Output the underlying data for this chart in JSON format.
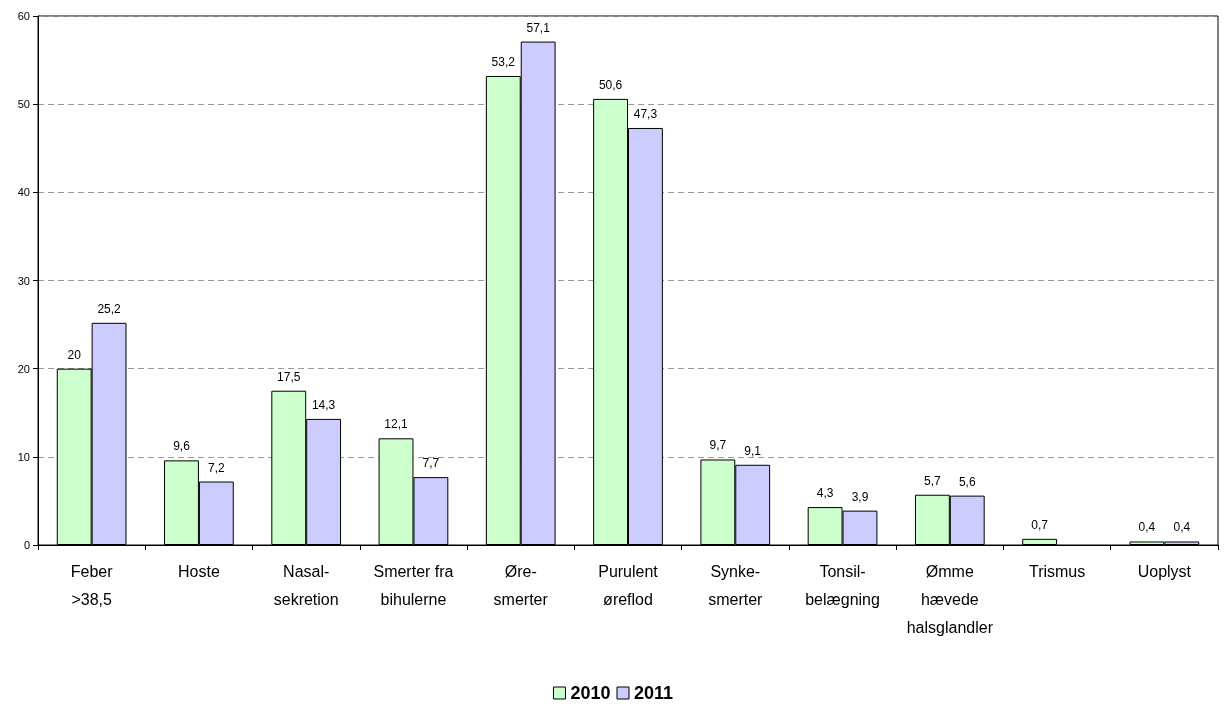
{
  "chart_data": {
    "type": "bar",
    "categories": [
      "Feber\n>38,5",
      "Hoste",
      "Nasal-\nsekretion",
      "Smerter fra\nbihulerne",
      "Øre-\nsmerter",
      "Purulent\nøreflod",
      "Synke-\nsmerter",
      "Tonsil-\nbelægning",
      "Ømme\nhævede\nhalsglandler",
      "Trismus",
      "Uoplyst"
    ],
    "series": [
      {
        "name": "2010",
        "color": "#ccffcc",
        "values": [
          20,
          9.6,
          17.5,
          12.1,
          53.2,
          50.6,
          9.7,
          4.3,
          5.7,
          0.7,
          0.4
        ],
        "value_labels": [
          "20",
          "9,6",
          "17,5",
          "12,1",
          "53,2",
          "50,6",
          "9,7",
          "4,3",
          "5,7",
          "0,7",
          "0,4"
        ]
      },
      {
        "name": "2011",
        "color": "#ccccff",
        "values": [
          25.2,
          7.2,
          14.3,
          7.7,
          57.1,
          47.3,
          9.1,
          3.9,
          5.6,
          null,
          0.4
        ],
        "value_labels": [
          "25,2",
          "7,2",
          "14,3",
          "7,7",
          "57,1",
          "47,3",
          "9,1",
          "3,9",
          "5,6",
          null,
          "0,4"
        ]
      }
    ],
    "ylim": [
      0,
      60
    ],
    "yticks": [
      0,
      10,
      20,
      30,
      40,
      50,
      60
    ],
    "grid": "y",
    "legend": "bottom"
  }
}
